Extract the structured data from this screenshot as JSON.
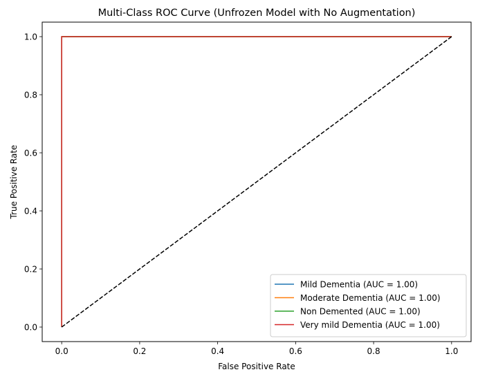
{
  "chart_data": {
    "type": "line",
    "title": "Multi-Class ROC Curve (Unfrozen Model with No Augmentation)",
    "xlabel": "False Positive Rate",
    "ylabel": "True Positive Rate",
    "xlim": [
      -0.05,
      1.05
    ],
    "ylim": [
      -0.05,
      1.05
    ],
    "xticks": [
      0.0,
      0.2,
      0.4,
      0.6,
      0.8,
      1.0
    ],
    "yticks": [
      0.0,
      0.2,
      0.4,
      0.6,
      0.8,
      1.0
    ],
    "xtick_labels": [
      "0.0",
      "0.2",
      "0.4",
      "0.6",
      "0.8",
      "1.0"
    ],
    "ytick_labels": [
      "0.0",
      "0.2",
      "0.4",
      "0.6",
      "0.8",
      "1.0"
    ],
    "grid": false,
    "legend_position": "lower-right",
    "series": [
      {
        "name": "Mild Dementia (AUC = 1.00)",
        "color": "#1f77b4",
        "x": [
          0,
          0,
          1
        ],
        "y": [
          0,
          1,
          1
        ]
      },
      {
        "name": "Moderate Dementia (AUC = 1.00)",
        "color": "#ff7f0e",
        "x": [
          0,
          0,
          1
        ],
        "y": [
          0,
          1,
          1
        ]
      },
      {
        "name": "Non Demented (AUC = 1.00)",
        "color": "#2ca02c",
        "x": [
          0,
          0,
          1
        ],
        "y": [
          0,
          1,
          1
        ]
      },
      {
        "name": "Very mild Dementia (AUC = 1.00)",
        "color": "#d62728",
        "x": [
          0,
          0,
          1
        ],
        "y": [
          0,
          1,
          1
        ]
      }
    ],
    "reference_line": {
      "color": "#000000",
      "style": "dashed",
      "x": [
        0,
        1
      ],
      "y": [
        0,
        1
      ]
    }
  }
}
